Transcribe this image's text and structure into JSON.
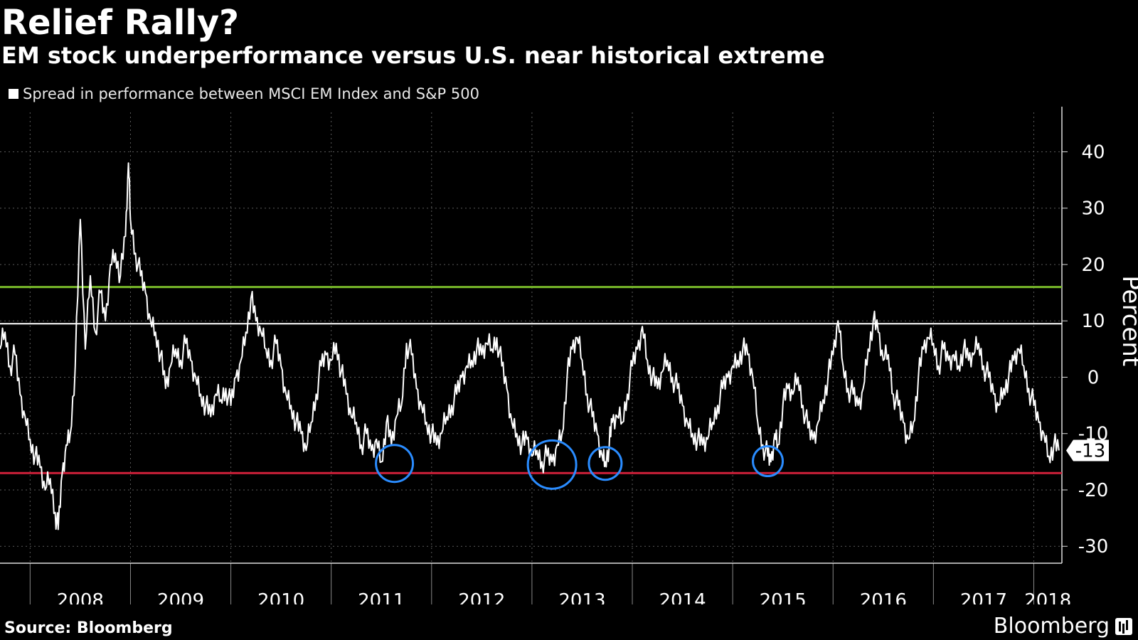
{
  "title": "Relief Rally?",
  "subtitle": "EM stock underperformance versus U.S. near historical extreme",
  "legend": "Spread in performance between MSCI EM Index and S&P 500",
  "source": "Source: Bloomberg",
  "brand": "Bloomberg",
  "brand_icon": "bloomberg-terminal-icon",
  "colors": {
    "background": "#000000",
    "series": "#ffffff",
    "upper_line": "#78b82a",
    "mid_line": "#ffffff",
    "lower_line": "#d0203a",
    "circles": "#2a8cff"
  },
  "chart_data": {
    "type": "line",
    "ylabel": "Percent",
    "ylim": [
      -33,
      47
    ],
    "yticks": [
      40,
      30,
      20,
      10,
      0,
      -10,
      -20,
      -30
    ],
    "xlim": [
      2007.7,
      2018.28
    ],
    "xticks": [
      "2008",
      "2009",
      "2010",
      "2011",
      "2012",
      "2013",
      "2014",
      "2015",
      "2016",
      "2017",
      "2018"
    ],
    "grid": true,
    "last_value_label": "-13",
    "reference_lines": [
      16,
      9.5,
      -17
    ],
    "highlight_circles": [
      {
        "x": 2011.63,
        "y": -15.3
      },
      {
        "x": 2013.2,
        "y": -15.5
      },
      {
        "x": 2013.73,
        "y": -15.3
      },
      {
        "x": 2015.35,
        "y": -14.9
      }
    ],
    "series": [
      {
        "values": [
          [
            2007.7,
            5
          ],
          [
            2007.75,
            8
          ],
          [
            2007.8,
            2
          ],
          [
            2007.85,
            4
          ],
          [
            2007.9,
            -3
          ],
          [
            2007.95,
            -7
          ],
          [
            2008.0,
            -11
          ],
          [
            2008.05,
            -14
          ],
          [
            2008.1,
            -16
          ],
          [
            2008.15,
            -20
          ],
          [
            2008.2,
            -18
          ],
          [
            2008.25,
            -24
          ],
          [
            2008.28,
            -27
          ],
          [
            2008.32,
            -17
          ],
          [
            2008.36,
            -12
          ],
          [
            2008.4,
            -10
          ],
          [
            2008.45,
            2
          ],
          [
            2008.5,
            28
          ],
          [
            2008.55,
            5
          ],
          [
            2008.6,
            18
          ],
          [
            2008.65,
            8
          ],
          [
            2008.7,
            15
          ],
          [
            2008.75,
            10
          ],
          [
            2008.8,
            20
          ],
          [
            2008.85,
            22
          ],
          [
            2008.9,
            18
          ],
          [
            2008.95,
            25
          ],
          [
            2008.98,
            38
          ],
          [
            2009.0,
            28
          ],
          [
            2009.05,
            22
          ],
          [
            2009.1,
            18
          ],
          [
            2009.15,
            15
          ],
          [
            2009.2,
            10
          ],
          [
            2009.25,
            8
          ],
          [
            2009.3,
            4
          ],
          [
            2009.35,
            -2
          ],
          [
            2009.4,
            2
          ],
          [
            2009.45,
            5
          ],
          [
            2009.5,
            3
          ],
          [
            2009.55,
            6
          ],
          [
            2009.6,
            3
          ],
          [
            2009.65,
            0
          ],
          [
            2009.7,
            -3
          ],
          [
            2009.75,
            -5
          ],
          [
            2009.8,
            -7
          ],
          [
            2009.85,
            -3
          ],
          [
            2009.9,
            -4
          ],
          [
            2009.95,
            -2
          ],
          [
            2010.0,
            -5
          ],
          [
            2010.05,
            0
          ],
          [
            2010.1,
            3
          ],
          [
            2010.15,
            8
          ],
          [
            2010.2,
            14
          ],
          [
            2010.25,
            10
          ],
          [
            2010.3,
            8
          ],
          [
            2010.35,
            5
          ],
          [
            2010.4,
            3
          ],
          [
            2010.45,
            6
          ],
          [
            2010.5,
            2
          ],
          [
            2010.55,
            -3
          ],
          [
            2010.6,
            -5
          ],
          [
            2010.65,
            -8
          ],
          [
            2010.7,
            -10
          ],
          [
            2010.75,
            -13
          ],
          [
            2010.8,
            -8
          ],
          [
            2010.85,
            -3
          ],
          [
            2010.9,
            2
          ],
          [
            2010.95,
            4
          ],
          [
            2011.0,
            3
          ],
          [
            2011.05,
            6
          ],
          [
            2011.1,
            1
          ],
          [
            2011.15,
            -3
          ],
          [
            2011.2,
            -7
          ],
          [
            2011.25,
            -8
          ],
          [
            2011.3,
            -12
          ],
          [
            2011.35,
            -10
          ],
          [
            2011.4,
            -13
          ],
          [
            2011.45,
            -11
          ],
          [
            2011.5,
            -15
          ],
          [
            2011.55,
            -8
          ],
          [
            2011.6,
            -12
          ],
          [
            2011.65,
            -7
          ],
          [
            2011.7,
            -5
          ],
          [
            2011.75,
            6
          ],
          [
            2011.8,
            4
          ],
          [
            2011.85,
            -2
          ],
          [
            2011.9,
            -5
          ],
          [
            2011.95,
            -8
          ],
          [
            2012.0,
            -10
          ],
          [
            2012.05,
            -12
          ],
          [
            2012.1,
            -10
          ],
          [
            2012.15,
            -7
          ],
          [
            2012.2,
            -5
          ],
          [
            2012.25,
            -3
          ],
          [
            2012.3,
            0
          ],
          [
            2012.35,
            2
          ],
          [
            2012.4,
            3
          ],
          [
            2012.45,
            5
          ],
          [
            2012.5,
            4
          ],
          [
            2012.55,
            6
          ],
          [
            2012.6,
            5
          ],
          [
            2012.65,
            7
          ],
          [
            2012.7,
            2
          ],
          [
            2012.75,
            -2
          ],
          [
            2012.8,
            -8
          ],
          [
            2012.85,
            -10
          ],
          [
            2012.9,
            -12
          ],
          [
            2012.95,
            -11
          ],
          [
            2013.0,
            -14
          ],
          [
            2013.05,
            -13
          ],
          [
            2013.1,
            -15
          ],
          [
            2013.15,
            -14
          ],
          [
            2013.2,
            -15
          ],
          [
            2013.25,
            -12
          ],
          [
            2013.3,
            -10
          ],
          [
            2013.35,
            0
          ],
          [
            2013.4,
            5
          ],
          [
            2013.45,
            7
          ],
          [
            2013.5,
            3
          ],
          [
            2013.55,
            -3
          ],
          [
            2013.6,
            -7
          ],
          [
            2013.65,
            -10
          ],
          [
            2013.7,
            -14
          ],
          [
            2013.73,
            -15
          ],
          [
            2013.77,
            -12
          ],
          [
            2013.8,
            -8
          ],
          [
            2013.85,
            -7
          ],
          [
            2013.9,
            -8
          ],
          [
            2013.95,
            -3
          ],
          [
            2014.0,
            2
          ],
          [
            2014.05,
            5
          ],
          [
            2014.1,
            9
          ],
          [
            2014.15,
            3
          ],
          [
            2014.2,
            0
          ],
          [
            2014.25,
            -2
          ],
          [
            2014.3,
            1
          ],
          [
            2014.35,
            3
          ],
          [
            2014.4,
            0
          ],
          [
            2014.45,
            -2
          ],
          [
            2014.5,
            -5
          ],
          [
            2014.55,
            -8
          ],
          [
            2014.6,
            -10
          ],
          [
            2014.65,
            -11
          ],
          [
            2014.7,
            -12
          ],
          [
            2014.75,
            -11
          ],
          [
            2014.8,
            -8
          ],
          [
            2014.85,
            -5
          ],
          [
            2014.9,
            -2
          ],
          [
            2014.95,
            0
          ],
          [
            2015.0,
            2
          ],
          [
            2015.05,
            3
          ],
          [
            2015.1,
            5
          ],
          [
            2015.15,
            4
          ],
          [
            2015.2,
            0
          ],
          [
            2015.25,
            -8
          ],
          [
            2015.3,
            -12
          ],
          [
            2015.35,
            -14
          ],
          [
            2015.38,
            -15
          ],
          [
            2015.42,
            -10
          ],
          [
            2015.45,
            -12
          ],
          [
            2015.5,
            -5
          ],
          [
            2015.55,
            -2
          ],
          [
            2015.6,
            -3
          ],
          [
            2015.65,
            0
          ],
          [
            2015.7,
            -5
          ],
          [
            2015.75,
            -9
          ],
          [
            2015.8,
            -11
          ],
          [
            2015.85,
            -8
          ],
          [
            2015.9,
            -4
          ],
          [
            2015.95,
            0
          ],
          [
            2016.0,
            4
          ],
          [
            2016.05,
            10
          ],
          [
            2016.1,
            2
          ],
          [
            2016.15,
            -2
          ],
          [
            2016.2,
            -3
          ],
          [
            2016.25,
            -5
          ],
          [
            2016.3,
            -2
          ],
          [
            2016.35,
            5
          ],
          [
            2016.4,
            10
          ],
          [
            2016.45,
            8
          ],
          [
            2016.5,
            3
          ],
          [
            2016.55,
            4
          ],
          [
            2016.6,
            -3
          ],
          [
            2016.65,
            -5
          ],
          [
            2016.7,
            -8
          ],
          [
            2016.75,
            -11
          ],
          [
            2016.8,
            -8
          ],
          [
            2016.85,
            0
          ],
          [
            2016.9,
            5
          ],
          [
            2016.95,
            7
          ],
          [
            2017.0,
            6
          ],
          [
            2017.05,
            2
          ],
          [
            2017.1,
            5
          ],
          [
            2017.15,
            3
          ],
          [
            2017.2,
            4
          ],
          [
            2017.25,
            2
          ],
          [
            2017.3,
            5
          ],
          [
            2017.35,
            3
          ],
          [
            2017.4,
            4
          ],
          [
            2017.45,
            6
          ],
          [
            2017.5,
            2
          ],
          [
            2017.55,
            0
          ],
          [
            2017.6,
            -3
          ],
          [
            2017.65,
            -5
          ],
          [
            2017.7,
            -2
          ],
          [
            2017.75,
            0
          ],
          [
            2017.8,
            3
          ],
          [
            2017.85,
            5
          ],
          [
            2017.9,
            2
          ],
          [
            2017.95,
            -2
          ],
          [
            2018.0,
            -5
          ],
          [
            2018.05,
            -8
          ],
          [
            2018.1,
            -10
          ],
          [
            2018.15,
            -14
          ],
          [
            2018.2,
            -12
          ],
          [
            2018.25,
            -13
          ]
        ]
      }
    ]
  }
}
